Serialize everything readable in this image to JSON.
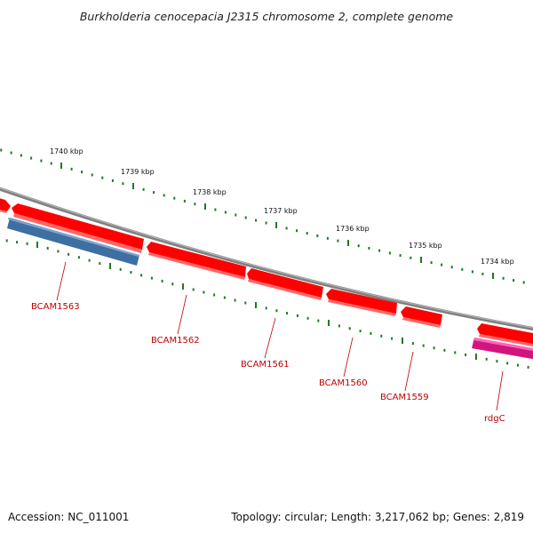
{
  "title": "Burkholderia cenocepacia J2315 chromosome 2, complete genome",
  "footer": {
    "accession": "Accession: NC_011001",
    "summary": "Topology: circular; Length: 3,217,062 bp; Genes: 2,819"
  },
  "scale": {
    "labels": [
      "1740 kbp",
      "1739 kbp",
      "1738 kbp",
      "1737 kbp",
      "1736 kbp",
      "1735 kbp",
      "1734 kbp"
    ]
  },
  "genes": [
    {
      "name": "BCAM1563",
      "color": "#3d6fa3"
    },
    {
      "name": "BCAM1562",
      "color": "#ff0000"
    },
    {
      "name": "BCAM1561",
      "color": "#ff0000"
    },
    {
      "name": "BCAM1560",
      "color": "#ff0000"
    },
    {
      "name": "BCAM1559",
      "color": "#ff0000"
    },
    {
      "name": "rdgC",
      "color": "#ff1493"
    }
  ],
  "colors": {
    "backbone": "#808080",
    "forward": "#ff0000",
    "reverse": "#3d6fa3",
    "rna": "#ff1493",
    "ticks": "#1f7a1f",
    "labels": "#c00000"
  }
}
